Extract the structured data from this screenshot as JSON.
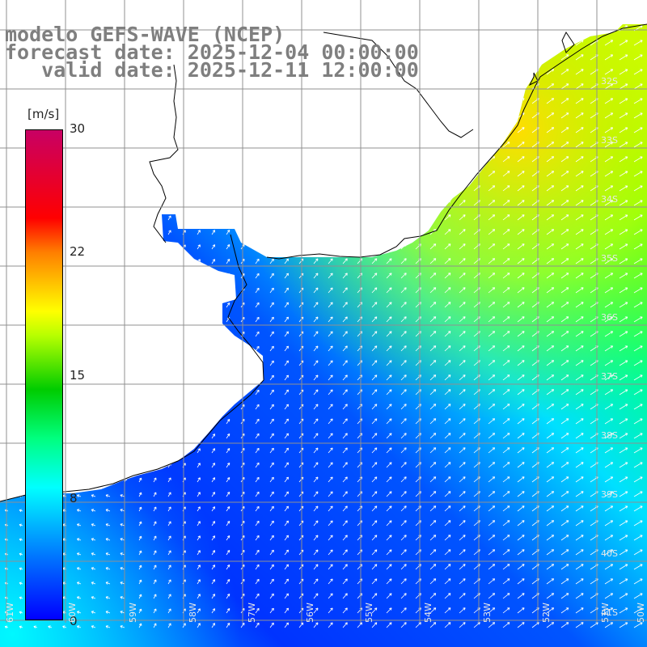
{
  "header": {
    "line1": "modelo GEFS-WAVE (NCEP)",
    "line2": "forecast date: 2025-12-04 00:00:00",
    "line3": "   valid date: 2025-12-11 12:00:00"
  },
  "colorbar": {
    "unit": "[m/s]",
    "ticks": [
      "30",
      "22",
      "15",
      "8",
      "0"
    ],
    "colors": [
      "#0000ff",
      "#0077ff",
      "#00ffff",
      "#00ff7f",
      "#00cc00",
      "#b7ff00",
      "#ffff00",
      "#ff7f00",
      "#ff0000",
      "#c80064"
    ]
  },
  "axes": {
    "lon_labels": [
      "61W",
      "60W",
      "59W",
      "58W",
      "57W",
      "56W",
      "55W",
      "54W",
      "53W",
      "52W",
      "51W",
      "50W"
    ],
    "lat_labels": [
      "32S",
      "33S",
      "34S",
      "35S",
      "36S",
      "37S",
      "38S",
      "39S",
      "40S",
      "41S"
    ]
  },
  "map_colors": {
    "land": "#ffffff",
    "coast": "#000000",
    "grid": "#909090",
    "arrow": "#ffffff"
  }
}
